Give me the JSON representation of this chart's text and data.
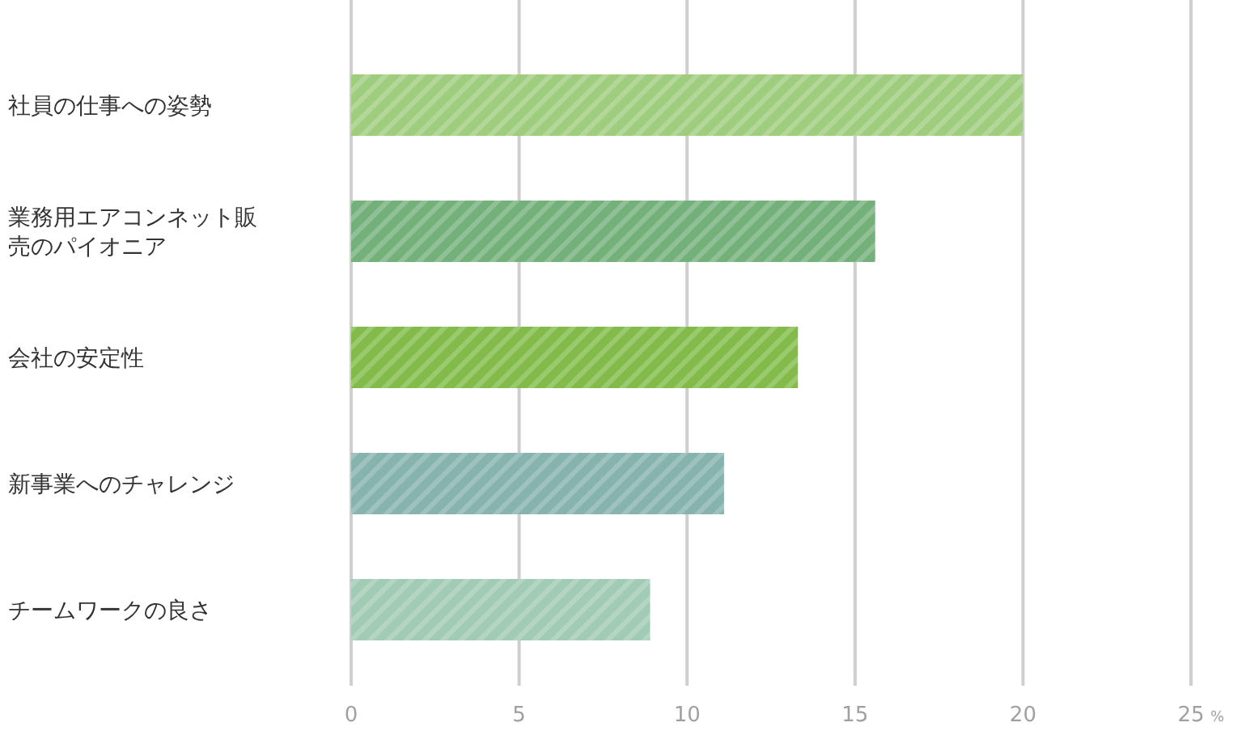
{
  "chart_data": {
    "type": "bar",
    "orientation": "horizontal",
    "xlabel": "%",
    "categories": [
      "社員の仕事への姿勢",
      "業務用エアコンネット販売のパイオニア",
      "会社の安定性",
      "新事業へのチャレンジ",
      "チームワークの良さ"
    ],
    "values": [
      20.0,
      15.6,
      13.3,
      11.1,
      8.9
    ],
    "colors": [
      "#9fcd7e",
      "#74b07a",
      "#82bb4a",
      "#86b3ad",
      "#a2cbb5"
    ],
    "xlim": [
      0,
      25
    ],
    "xticks": [
      0,
      5,
      10,
      15,
      20,
      25
    ],
    "grid": "x"
  }
}
